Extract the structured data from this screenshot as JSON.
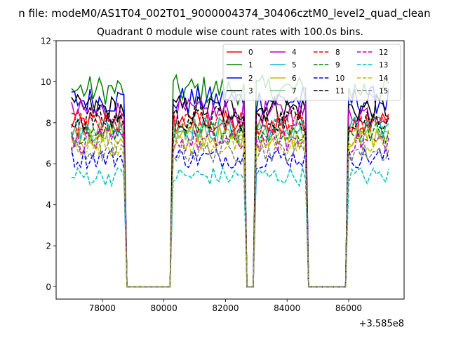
{
  "suptitle": "n file: modeM0/AS1T04_002T01_9000004374_30406cztM0_level2_quad_clean",
  "chart_data": {
    "type": "line",
    "title": "Quadrant 0 module wise count rates with 100.0s bins.",
    "xlabel": "",
    "ylabel": "",
    "offset_label": "+3.585e8",
    "x_offset": 358500000,
    "xlim": [
      76500,
      87800
    ],
    "ylim": [
      -0.6,
      12
    ],
    "xticks": [
      78000,
      80000,
      82000,
      84000,
      86000
    ],
    "xtick_labels": [
      "78000",
      "80000",
      "82000",
      "84000",
      "86000"
    ],
    "yticks": [
      0,
      2,
      4,
      6,
      8,
      10,
      12
    ],
    "ytick_labels": [
      "0",
      "2",
      "4",
      "6",
      "8",
      "10",
      "12"
    ],
    "grid": false,
    "legend_position": "top-right",
    "segments": [
      [
        77000,
        78700
      ],
      [
        80300,
        82600
      ],
      [
        83000,
        84600
      ],
      [
        86000,
        87300
      ]
    ],
    "gaps_zero": [
      [
        78800,
        80200
      ],
      [
        82700,
        82900
      ],
      [
        84700,
        85900
      ]
    ],
    "series": [
      {
        "name": "0",
        "color": "#ff0000",
        "dash": "solid",
        "level": 8.0
      },
      {
        "name": "1",
        "color": "#008000",
        "dash": "solid",
        "level": 9.6
      },
      {
        "name": "2",
        "color": "#0000ff",
        "dash": "solid",
        "level": 9.1
      },
      {
        "name": "3",
        "color": "#000000",
        "dash": "solid",
        "level": 8.7
      },
      {
        "name": "4",
        "color": "#bf00bf",
        "dash": "solid",
        "level": 8.5
      },
      {
        "name": "5",
        "color": "#00bfbf",
        "dash": "solid",
        "level": 7.7
      },
      {
        "name": "6",
        "color": "#bfbf00",
        "dash": "solid",
        "level": 7.3
      },
      {
        "name": "7",
        "color": "#7fbf7f",
        "dash": "solid",
        "level": 7.6
      },
      {
        "name": "8",
        "color": "#ff0000",
        "dash": "dashed",
        "level": 7.9
      },
      {
        "name": "9",
        "color": "#008000",
        "dash": "dashed",
        "level": 7.5
      },
      {
        "name": "10",
        "color": "#0000ff",
        "dash": "dashed",
        "level": 6.3
      },
      {
        "name": "11",
        "color": "#000000",
        "dash": "dashed",
        "level": 8.2
      },
      {
        "name": "12",
        "color": "#bf00bf",
        "dash": "dashed",
        "level": 7.1
      },
      {
        "name": "13",
        "color": "#00bfbf",
        "dash": "dashed",
        "level": 5.4
      },
      {
        "name": "14",
        "color": "#bfbf00",
        "dash": "dashed",
        "level": 6.9
      },
      {
        "name": "15",
        "color": "#7f7f7f",
        "dash": "dashed",
        "level": 6.6
      }
    ]
  }
}
